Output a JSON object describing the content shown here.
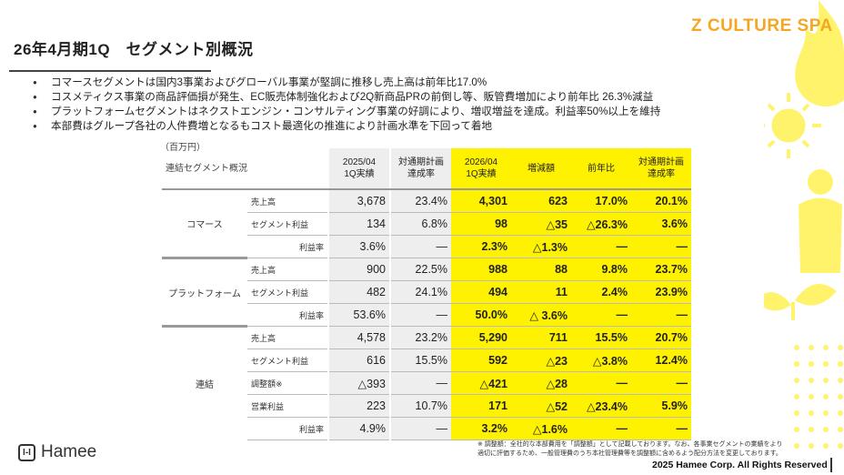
{
  "header": {
    "title": "26年4月期1Q　セグメント別概況",
    "brand": "Z CULTURE SPA"
  },
  "bullets": [
    "コマースセグメントは国内3事業およびグローバル事業が堅調に推移し売上高は前年比17.0%",
    "コスメティクス事業の商品評価損が発生、EC販売体制強化および2Q新商品PRの前倒し等、販管費増加により前年比 26.3%減益",
    "プラットフォームセグメントはネクストエンジン・コンサルティング事業の好調により、増収増益を達成。利益率50%以上を維持",
    "本部費はグループ各社の人件費増となるもコスト最適化の推進により計画水準を下回って着地"
  ],
  "table": {
    "unit": "（百万円）",
    "corner": "連結セグメント概況",
    "columns": [
      {
        "l1": "2025/04",
        "l2": "1Q実績",
        "style": "gray"
      },
      {
        "l1": "対通期計画",
        "l2": "達成率",
        "style": "gray"
      },
      {
        "l1": "2026/04",
        "l2": "1Q実績",
        "style": "yel"
      },
      {
        "l1": "増減額",
        "l2": "",
        "style": "yel"
      },
      {
        "l1": "前年比",
        "l2": "",
        "style": "yel"
      },
      {
        "l1": "対通期計画",
        "l2": "達成率",
        "style": "yel"
      }
    ],
    "groups": [
      {
        "name": "コマース",
        "rows": [
          {
            "label": "売上高",
            "align": "l",
            "values": [
              "3,678",
              "23.4%",
              "4,301",
              "623",
              "17.0%",
              "20.1%"
            ]
          },
          {
            "label": "セグメント利益",
            "align": "l",
            "values": [
              "134",
              "6.8%",
              "98",
              "△35",
              "△26.3%",
              "3.6%"
            ]
          },
          {
            "label": "利益率",
            "align": "r",
            "values": [
              "3.6%",
              "—",
              "2.3%",
              "△1.3%",
              "—",
              "—"
            ]
          }
        ]
      },
      {
        "name": "プラットフォーム",
        "rows": [
          {
            "label": "売上高",
            "align": "l",
            "values": [
              "900",
              "22.5%",
              "988",
              "88",
              "9.8%",
              "23.7%"
            ]
          },
          {
            "label": "セグメント利益",
            "align": "l",
            "values": [
              "482",
              "24.1%",
              "494",
              "11",
              "2.4%",
              "23.9%"
            ]
          },
          {
            "label": "利益率",
            "align": "r",
            "values": [
              "53.6%",
              "—",
              "50.0%",
              "△ 3.6%",
              "—",
              "—"
            ]
          }
        ]
      },
      {
        "name": "連結",
        "rows": [
          {
            "label": "売上高",
            "align": "l",
            "values": [
              "4,578",
              "23.2%",
              "5,290",
              "711",
              "15.5%",
              "20.7%"
            ]
          },
          {
            "label": "セグメント利益",
            "align": "l",
            "values": [
              "616",
              "15.5%",
              "592",
              "△23",
              "△3.8%",
              "12.4%"
            ]
          },
          {
            "label": "調整額※",
            "align": "l",
            "values": [
              "△393",
              "—",
              "△421",
              "△28",
              "—",
              "—"
            ]
          },
          {
            "label": "営業利益",
            "align": "l",
            "values": [
              "223",
              "10.7%",
              "171",
              "△52",
              "△23.4%",
              "5.9%"
            ]
          },
          {
            "label": "利益率",
            "align": "r",
            "values": [
              "4.9%",
              "—",
              "3.2%",
              "△1.6%",
              "—",
              "—"
            ]
          }
        ]
      }
    ]
  },
  "footer": {
    "note_line1": "※ 調整額：全社的な本部費用を「調整額」として記載しております。なお、各事業セグメントの業績をより",
    "note_line2": "適切に評価するため、一般管理費のうち本社管理費等を調整額に含めるよう配分方法を変更しております。",
    "copyright": "2025 Hamee Corp. All Rights Reserved",
    "logo_text": "Hamee",
    "logo_mark": "I-I"
  },
  "colors": {
    "accent": "#fff200",
    "brand": "#f5a623",
    "deco": "#fff36b"
  }
}
